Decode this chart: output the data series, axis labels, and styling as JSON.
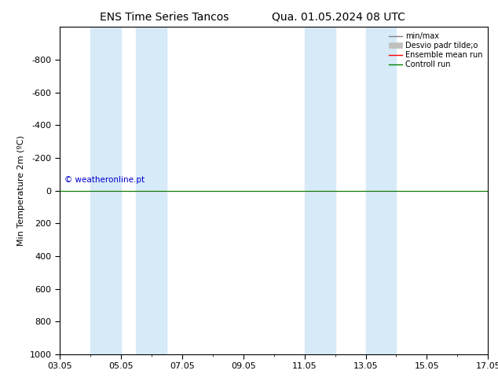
{
  "title_left": "ENS Time Series Tancos",
  "title_right": "Qua. 01.05.2024 08 UTC",
  "ylabel": "Min Temperature 2m (ºC)",
  "xlim": [
    0,
    14
  ],
  "ylim": [
    1000,
    -1000
  ],
  "yticks": [
    -800,
    -600,
    -400,
    -200,
    0,
    200,
    400,
    600,
    800,
    1000
  ],
  "xtick_labels": [
    "03.05",
    "05.05",
    "07.05",
    "09.05",
    "11.05",
    "13.05",
    "15.05",
    "17.05"
  ],
  "xtick_positions": [
    0,
    2,
    4,
    6,
    8,
    10,
    12,
    14
  ],
  "shaded_regions": [
    [
      1.0,
      2.0
    ],
    [
      2.5,
      3.5
    ],
    [
      8.0,
      9.0
    ],
    [
      10.0,
      11.0
    ]
  ],
  "shade_color": "#d6eaf8",
  "control_run_y": 0,
  "control_run_color": "#008000",
  "ensemble_mean_color": "#ff0000",
  "minmax_color": "#808080",
  "stddev_color": "#c0c0c0",
  "watermark": "© weatheronline.pt",
  "watermark_color": "#0000cc",
  "background_color": "#ffffff",
  "legend_labels": [
    "min/max",
    "Desvio padr tilde;o",
    "Ensemble mean run",
    "Controll run"
  ],
  "legend_colors": [
    "#808080",
    "#c0c0c0",
    "#ff0000",
    "#008000"
  ]
}
